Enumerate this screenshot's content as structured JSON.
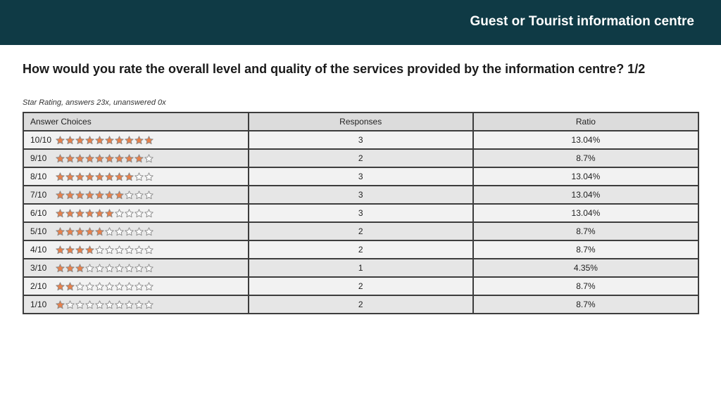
{
  "header": {
    "title": "Guest or Tourist information centre"
  },
  "question": "How would you rate the overall level and quality of the services provided by the information centre? 1/2",
  "subtitle": "Star Rating, answers 23x, unanswered 0x",
  "table": {
    "headers": {
      "choice": "Answer Choices",
      "responses": "Responses",
      "ratio": "Ratio"
    },
    "max_stars": 10,
    "colors": {
      "star_filled": "#e8804b",
      "star_empty": "#ffffff",
      "star_outline": "#8a8a8a"
    },
    "rows": [
      {
        "label": "10/10",
        "stars": 10,
        "responses": "3",
        "ratio": "13.04%"
      },
      {
        "label": "9/10",
        "stars": 9,
        "responses": "2",
        "ratio": "8.7%"
      },
      {
        "label": "8/10",
        "stars": 8,
        "responses": "3",
        "ratio": "13.04%"
      },
      {
        "label": "7/10",
        "stars": 7,
        "responses": "3",
        "ratio": "13.04%"
      },
      {
        "label": "6/10",
        "stars": 6,
        "responses": "3",
        "ratio": "13.04%"
      },
      {
        "label": "5/10",
        "stars": 5,
        "responses": "2",
        "ratio": "8.7%"
      },
      {
        "label": "4/10",
        "stars": 4,
        "responses": "2",
        "ratio": "8.7%"
      },
      {
        "label": "3/10",
        "stars": 3,
        "responses": "1",
        "ratio": "4.35%"
      },
      {
        "label": "2/10",
        "stars": 2,
        "responses": "2",
        "ratio": "8.7%"
      },
      {
        "label": "1/10",
        "stars": 1,
        "responses": "2",
        "ratio": "8.7%"
      }
    ]
  }
}
